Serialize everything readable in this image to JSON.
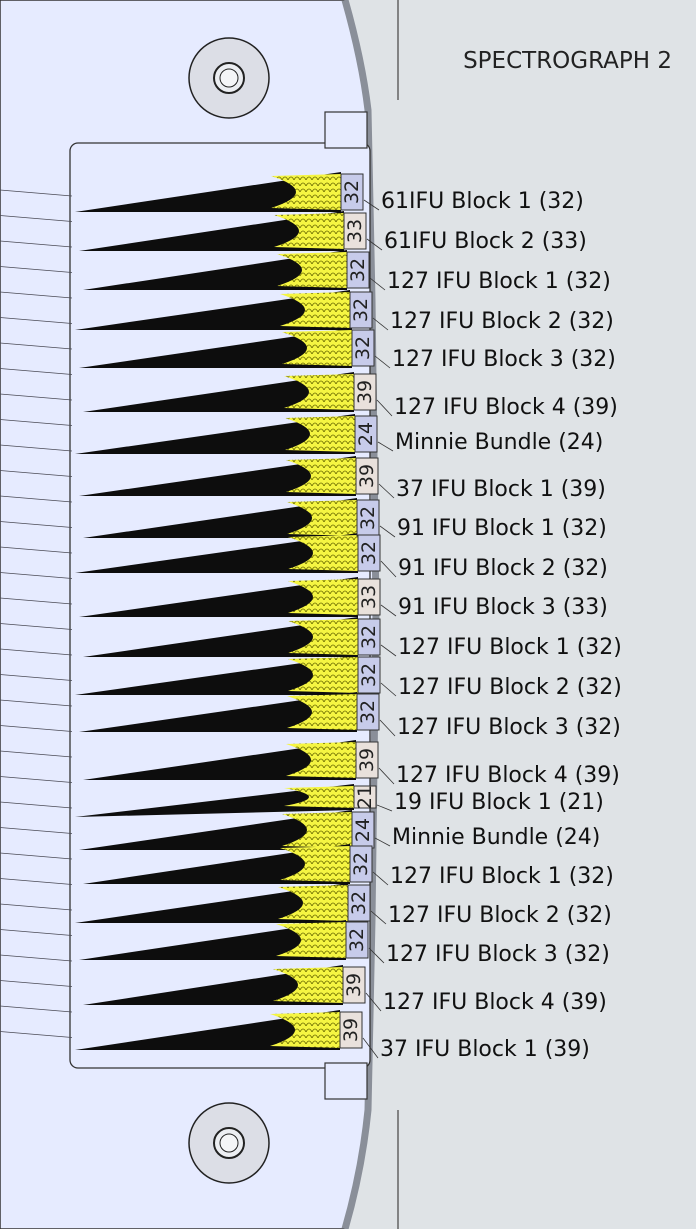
{
  "title": "SPECTROGRAPH 2",
  "colors": {
    "plate": "#e6ebff",
    "right_panel": "#dfe3e6",
    "fiber_fill": "#f5f542",
    "label_blue": "#c7cbea",
    "label_beige": "#e9e1dc"
  },
  "blocks": [
    {
      "count": "32",
      "label": "61IFU  Block 1 (32)",
      "tone": "blue"
    },
    {
      "count": "33",
      "label": "61IFU  Block 2 (33)",
      "tone": "beige"
    },
    {
      "count": "32",
      "label": "127 IFU  Block 1 (32)",
      "tone": "blue"
    },
    {
      "count": "32",
      "label": "127 IFU  Block 2 (32)",
      "tone": "blue"
    },
    {
      "count": "32",
      "label": "127 IFU  Block 3 (32)",
      "tone": "blue"
    },
    {
      "count": "39",
      "label": "127 IFU  Block 4 (39)",
      "tone": "beige"
    },
    {
      "count": "24",
      "label": "Minnie Bundle (24)",
      "tone": "blue"
    },
    {
      "count": "39",
      "label": "37 IFU  Block 1 (39)",
      "tone": "beige"
    },
    {
      "count": "32",
      "label": "91 IFU  Block 1 (32)",
      "tone": "blue"
    },
    {
      "count": "32",
      "label": "91 IFU  Block 2 (32)",
      "tone": "blue"
    },
    {
      "count": "33",
      "label": "91 IFU  Block 3 (33)",
      "tone": "beige"
    },
    {
      "count": "32",
      "label": "127 IFU  Block 1 (32)",
      "tone": "blue"
    },
    {
      "count": "32",
      "label": "127 IFU  Block 2 (32)",
      "tone": "blue"
    },
    {
      "count": "32",
      "label": "127 IFU  Block 3 (32)",
      "tone": "blue"
    },
    {
      "count": "39",
      "label": "127 IFU  Block 4 (39)",
      "tone": "beige"
    },
    {
      "count": "21",
      "label": "19 IFU  Block 1 (21)",
      "tone": "beige"
    },
    {
      "count": "24",
      "label": "Minnie Bundle (24)",
      "tone": "blue"
    },
    {
      "count": "32",
      "label": "127 IFU Block 1 (32)",
      "tone": "blue"
    },
    {
      "count": "32",
      "label": "127 IFU Block 2 (32)",
      "tone": "blue"
    },
    {
      "count": "32",
      "label": "127 IFU Block 3 (32)",
      "tone": "blue"
    },
    {
      "count": "39",
      "label": "127 IFU Block 4 (39)",
      "tone": "beige"
    },
    {
      "count": "39",
      "label": "37 IFU Block 1 (39)",
      "tone": "beige"
    }
  ]
}
